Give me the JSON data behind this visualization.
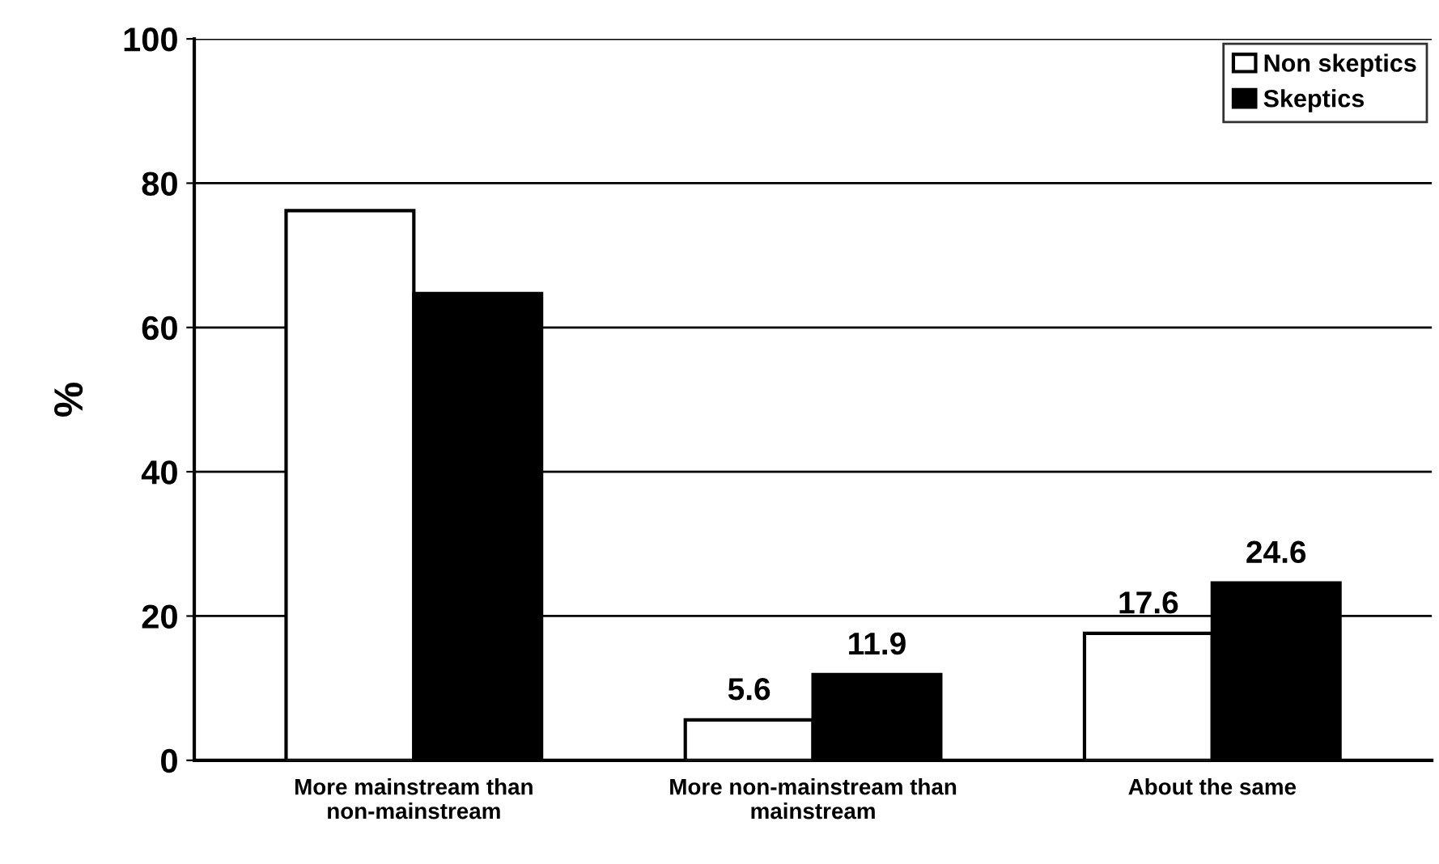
{
  "chart_data": {
    "type": "bar",
    "ylabel": "%",
    "categories": [
      "More mainstream than\nnon-mainstream",
      "More non-mainstream than\nmainstream",
      "About the same"
    ],
    "series": [
      {
        "name": "Non skeptics",
        "color": "#ffffff",
        "values": [
          76.2,
          5.6,
          17.6
        ],
        "value_labels": [
          null,
          "5.6",
          "17.6"
        ]
      },
      {
        "name": "Skeptics",
        "color": "#000000",
        "values": [
          64.7,
          11.9,
          24.6
        ],
        "value_labels": [
          null,
          "11.9",
          "24.6"
        ]
      }
    ],
    "ylim": [
      0,
      100
    ],
    "yticks": [
      0,
      20,
      40,
      60,
      80,
      100
    ],
    "grid": "y",
    "legend": "top right"
  }
}
